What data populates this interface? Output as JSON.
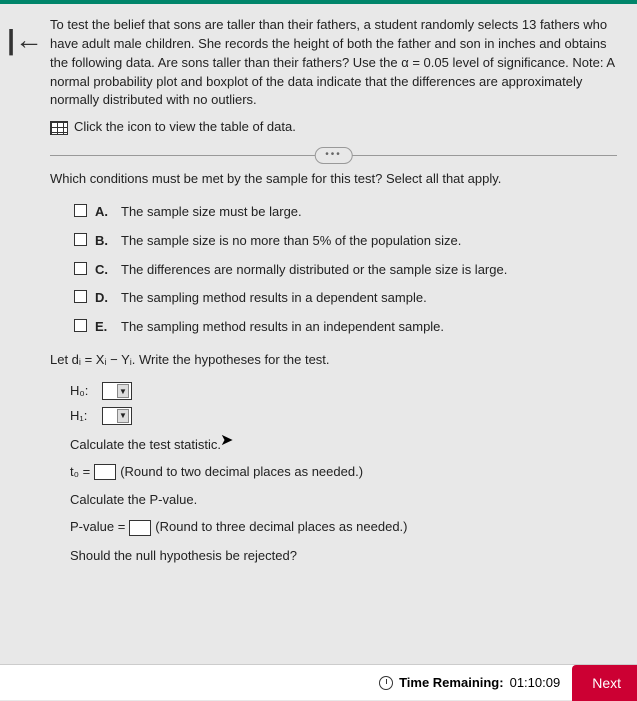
{
  "problem": {
    "text": "To test the belief that sons are taller than their fathers, a student randomly selects 13 fathers who have adult male children. She records the height of both the father and son in inches and obtains the following data. Are sons taller than their fathers? Use the α = 0.05 level of significance. Note: A normal probability plot and boxplot of the data indicate that the differences are approximately normally distributed with no outliers.",
    "table_link": "Click the icon to view the table of data."
  },
  "question": "Which conditions must be met by the sample for this test? Select all that apply.",
  "options": [
    {
      "letter": "A.",
      "text": "The sample size must be large."
    },
    {
      "letter": "B.",
      "text": "The sample size is no more than 5% of the population size."
    },
    {
      "letter": "C.",
      "text": "The differences are normally distributed or the sample size is large."
    },
    {
      "letter": "D.",
      "text": "The sampling method results in a dependent sample."
    },
    {
      "letter": "E.",
      "text": "The sampling method results in an independent sample."
    }
  ],
  "let_text": "Let dᵢ = Xᵢ − Yᵢ. Write the hypotheses for the test.",
  "hypotheses": {
    "h0": "H₀:",
    "h1": "H₁:"
  },
  "calc_stat": "Calculate the test statistic.",
  "t0_prefix": "t₀ =",
  "t0_suffix": "(Round to two decimal places as needed.)",
  "calc_pval": "Calculate the P-value.",
  "pval_prefix": "P-value =",
  "pval_suffix": "(Round to three decimal places as needed.)",
  "reject_q": "Should the null hypothesis be rejected?",
  "footer": {
    "timer_label": "Time Remaining:",
    "timer_value": "01:10:09",
    "next": "Next"
  },
  "ellipsis": "•••"
}
